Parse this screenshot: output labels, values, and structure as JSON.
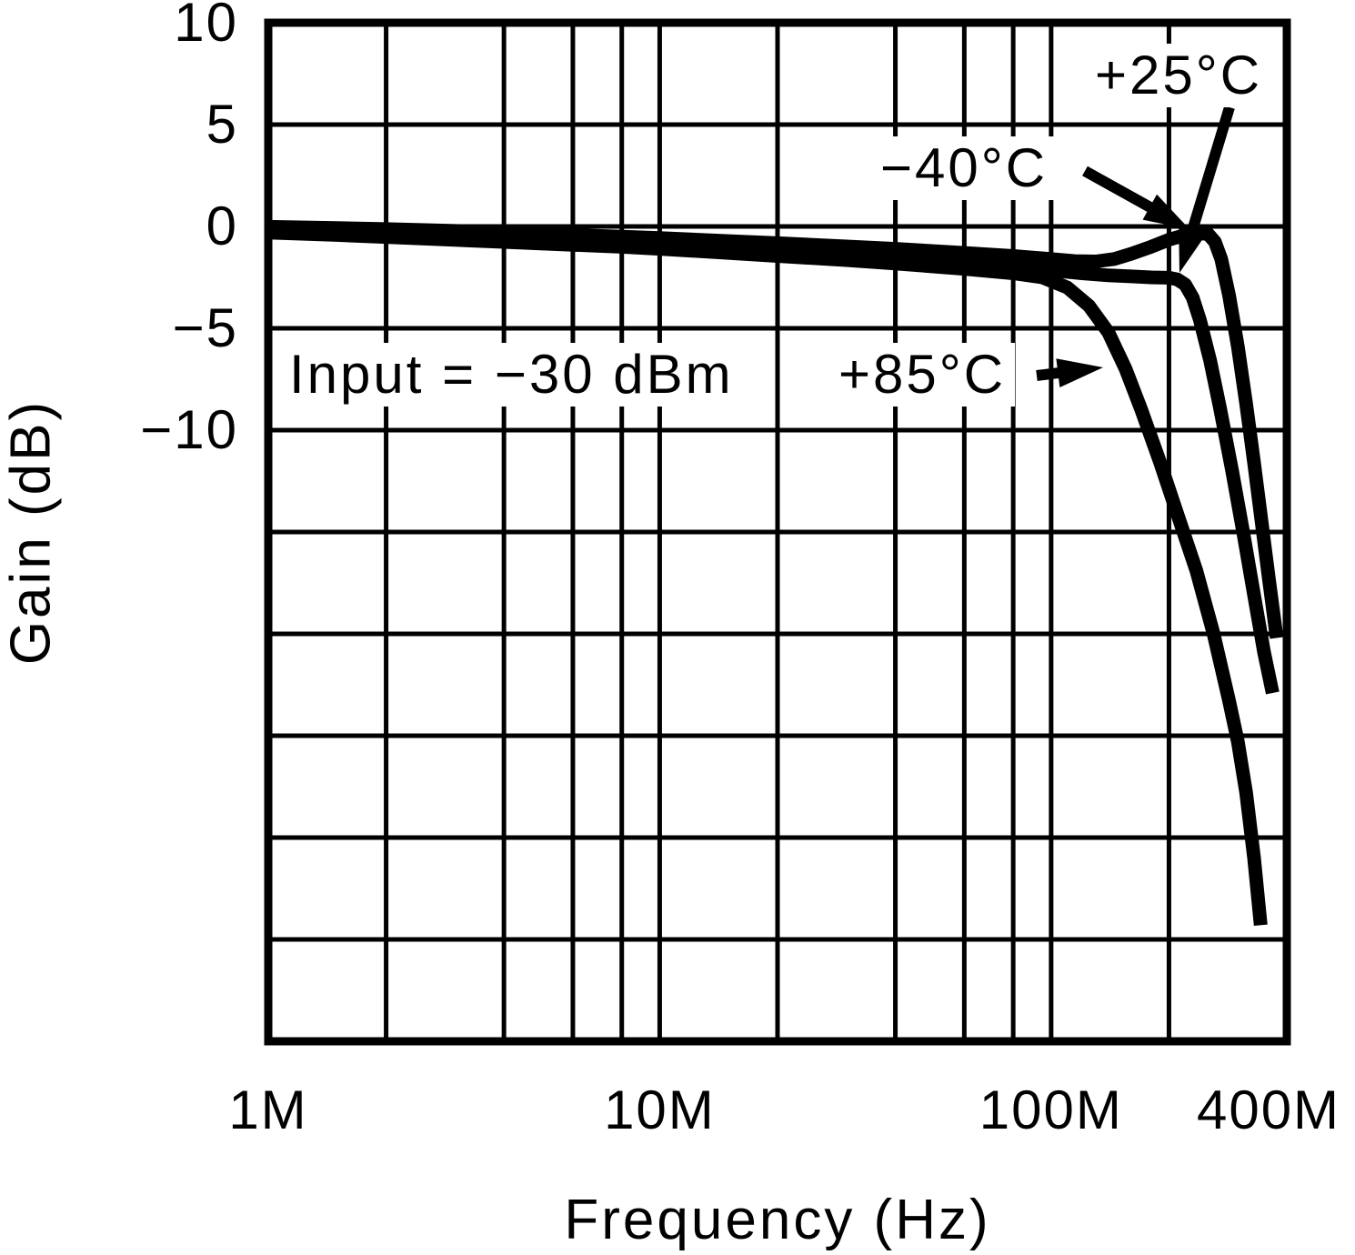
{
  "figure": {
    "background": "#ffffff",
    "ink": "#000000"
  },
  "chart_data": {
    "type": "line",
    "title": "",
    "xlabel": "Frequency (Hz)",
    "ylabel": "Gain (dB)",
    "x_scale": "log",
    "x_min_hz": 1000000.0,
    "x_max_hz": 400000000.0,
    "y_min_db": -40,
    "y_max_db": 10,
    "y_grid_step_db": 5,
    "grid": "on",
    "legend_position": "inline-labels",
    "x_ticks": [
      {
        "hz": 1000000.0,
        "label": "1M"
      },
      {
        "hz": 10000000.0,
        "label": "10M"
      },
      {
        "hz": 100000000.0,
        "label": "100M"
      },
      {
        "hz": 400000000.0,
        "label": "400M"
      }
    ],
    "y_ticks": [
      {
        "db": 10,
        "label": "10"
      },
      {
        "db": 5,
        "label": "5"
      },
      {
        "db": 0,
        "label": "0"
      },
      {
        "db": -5,
        "label": "−5"
      },
      {
        "db": -10,
        "label": "−10"
      }
    ],
    "x_gridlines_hz": [
      2000000.0,
      4000000.0,
      6000000.0,
      8000000.0,
      10000000.0,
      20000000.0,
      40000000.0,
      60000000.0,
      80000000.0,
      100000000.0,
      200000000.0
    ],
    "y_gridlines_db": [
      5,
      0,
      -5,
      -10,
      -15,
      -20,
      -25,
      -30,
      -35
    ],
    "condition_label": "Input = −30 dBm",
    "series": [
      {
        "name": "−40°C",
        "points_mhz_db": [
          [
            1,
            -0.02
          ],
          [
            1.5,
            -0.08
          ],
          [
            2,
            -0.13
          ],
          [
            3,
            -0.22
          ],
          [
            4,
            -0.3
          ],
          [
            6,
            -0.42
          ],
          [
            8,
            -0.5
          ],
          [
            10,
            -0.57
          ],
          [
            15,
            -0.72
          ],
          [
            20,
            -0.82
          ],
          [
            30,
            -0.98
          ],
          [
            40,
            -1.1
          ],
          [
            60,
            -1.3
          ],
          [
            80,
            -1.45
          ],
          [
            100,
            -1.6
          ],
          [
            115,
            -1.7
          ],
          [
            130,
            -1.72
          ],
          [
            145,
            -1.6
          ],
          [
            160,
            -1.35
          ],
          [
            180,
            -1.0
          ],
          [
            200,
            -0.65
          ],
          [
            220,
            -0.42
          ],
          [
            240,
            -0.33
          ],
          [
            252,
            -0.38
          ],
          [
            262,
            -0.75
          ],
          [
            272,
            -1.6
          ],
          [
            285,
            -3.4
          ],
          [
            300,
            -5.9
          ],
          [
            315,
            -8.7
          ],
          [
            330,
            -11.6
          ],
          [
            345,
            -14.5
          ],
          [
            360,
            -17.3
          ],
          [
            377,
            -20.2
          ]
        ]
      },
      {
        "name": "+25°C",
        "points_mhz_db": [
          [
            1,
            -0.12
          ],
          [
            1.5,
            -0.2
          ],
          [
            2,
            -0.27
          ],
          [
            3,
            -0.38
          ],
          [
            4,
            -0.47
          ],
          [
            6,
            -0.6
          ],
          [
            8,
            -0.7
          ],
          [
            10,
            -0.78
          ],
          [
            15,
            -0.95
          ],
          [
            20,
            -1.08
          ],
          [
            30,
            -1.3
          ],
          [
            40,
            -1.45
          ],
          [
            60,
            -1.72
          ],
          [
            80,
            -1.95
          ],
          [
            100,
            -2.15
          ],
          [
            120,
            -2.3
          ],
          [
            140,
            -2.4
          ],
          [
            160,
            -2.45
          ],
          [
            180,
            -2.5
          ],
          [
            200,
            -2.52
          ],
          [
            210,
            -2.6
          ],
          [
            220,
            -2.85
          ],
          [
            230,
            -3.5
          ],
          [
            240,
            -4.6
          ],
          [
            255,
            -6.6
          ],
          [
            270,
            -8.9
          ],
          [
            290,
            -12.0
          ],
          [
            310,
            -15.1
          ],
          [
            330,
            -18.1
          ],
          [
            350,
            -20.9
          ],
          [
            368,
            -22.9
          ]
        ]
      },
      {
        "name": "+85°C",
        "points_mhz_db": [
          [
            1,
            -0.3
          ],
          [
            1.5,
            -0.42
          ],
          [
            2,
            -0.52
          ],
          [
            3,
            -0.66
          ],
          [
            4,
            -0.76
          ],
          [
            6,
            -0.9
          ],
          [
            8,
            -1.0
          ],
          [
            10,
            -1.1
          ],
          [
            15,
            -1.3
          ],
          [
            20,
            -1.45
          ],
          [
            30,
            -1.65
          ],
          [
            40,
            -1.82
          ],
          [
            60,
            -2.08
          ],
          [
            80,
            -2.3
          ],
          [
            95,
            -2.5
          ],
          [
            110,
            -3.0
          ],
          [
            125,
            -3.9
          ],
          [
            140,
            -5.2
          ],
          [
            155,
            -7.0
          ],
          [
            170,
            -9.0
          ],
          [
            190,
            -11.6
          ],
          [
            210,
            -14.1
          ],
          [
            235,
            -16.9
          ],
          [
            260,
            -20.0
          ],
          [
            285,
            -23.3
          ],
          [
            300,
            -25.3
          ],
          [
            315,
            -27.8
          ],
          [
            330,
            -31.0
          ],
          [
            343,
            -34.3
          ]
        ]
      }
    ]
  },
  "annotations": {
    "minus40_label": "−40°C",
    "plus25_label": "+25°C",
    "plus85_label": "+85°C",
    "input_label": "Input = −30 dBm"
  }
}
